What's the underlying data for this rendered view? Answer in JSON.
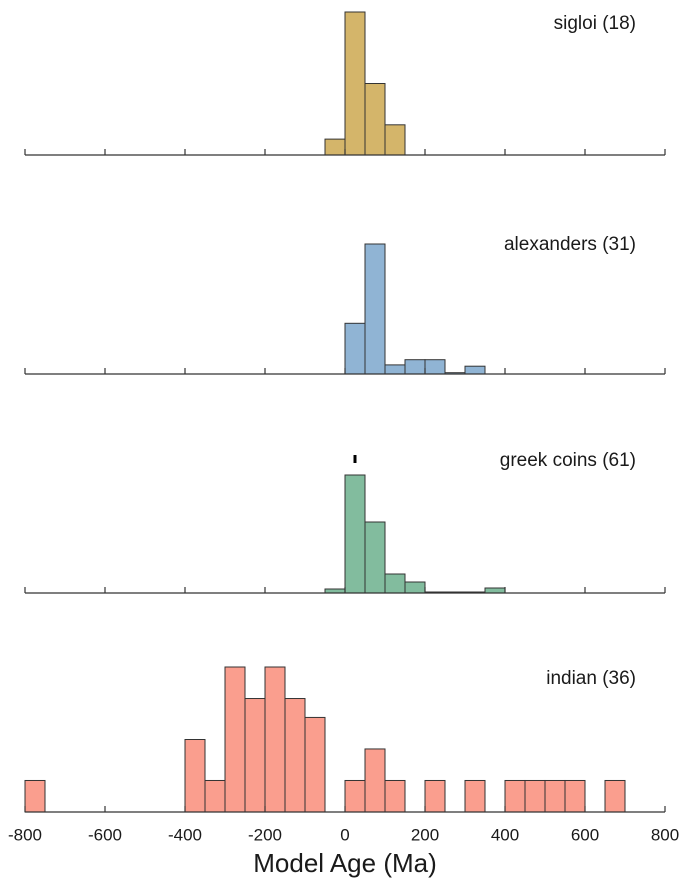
{
  "chart_data": {
    "type": "histogram",
    "xlabel": "Model Age (Ma)",
    "xlim": [
      -800,
      800
    ],
    "xticks": [
      "-800",
      "-600",
      "-400",
      "-200",
      "0",
      "200",
      "400",
      "600",
      "800"
    ],
    "bin_width": 50,
    "panels": [
      {
        "label": "sigloi (18)",
        "color": "#d4b56a",
        "bins": [
          {
            "x0": -50,
            "h": 2
          },
          {
            "x0": 0,
            "h": 18
          },
          {
            "x0": 50,
            "h": 9
          },
          {
            "x0": 100,
            "h": 3.8
          }
        ]
      },
      {
        "label": "alexanders (31)",
        "color": "#90b4d4",
        "bins": [
          {
            "x0": 0,
            "h": 3.9
          },
          {
            "x0": 50,
            "h": 10
          },
          {
            "x0": 100,
            "h": 0.7
          },
          {
            "x0": 150,
            "h": 1.1
          },
          {
            "x0": 200,
            "h": 1.1
          },
          {
            "x0": 250,
            "h": 0.1
          },
          {
            "x0": 300,
            "h": 0.6
          }
        ]
      },
      {
        "label": "greek coins (61)",
        "color": "#82bc9e",
        "marker_x": 25,
        "bins": [
          {
            "x0": -50,
            "h": 0.4
          },
          {
            "x0": 0,
            "h": 11.8
          },
          {
            "x0": 50,
            "h": 7.1
          },
          {
            "x0": 100,
            "h": 1.9
          },
          {
            "x0": 150,
            "h": 1.1
          },
          {
            "x0": 200,
            "h": 0.1
          },
          {
            "x0": 250,
            "h": 0.1
          },
          {
            "x0": 300,
            "h": 0.1
          },
          {
            "x0": 350,
            "h": 0.5
          }
        ]
      },
      {
        "label": "indian (36)",
        "color": "#fa9e8e",
        "bins": [
          {
            "x0": -800,
            "h": 1
          },
          {
            "x0": -400,
            "h": 2.3
          },
          {
            "x0": -350,
            "h": 1
          },
          {
            "x0": -300,
            "h": 4.6
          },
          {
            "x0": -250,
            "h": 3.6
          },
          {
            "x0": -200,
            "h": 4.6
          },
          {
            "x0": -150,
            "h": 3.6
          },
          {
            "x0": -100,
            "h": 3
          },
          {
            "x0": -50,
            "h": 0
          },
          {
            "x0": 0,
            "h": 1
          },
          {
            "x0": 50,
            "h": 2
          },
          {
            "x0": 100,
            "h": 1
          },
          {
            "x0": 200,
            "h": 1
          },
          {
            "x0": 300,
            "h": 1
          },
          {
            "x0": 400,
            "h": 1
          },
          {
            "x0": 450,
            "h": 1
          },
          {
            "x0": 500,
            "h": 1
          },
          {
            "x0": 550,
            "h": 1
          },
          {
            "x0": 650,
            "h": 1
          }
        ]
      }
    ]
  }
}
